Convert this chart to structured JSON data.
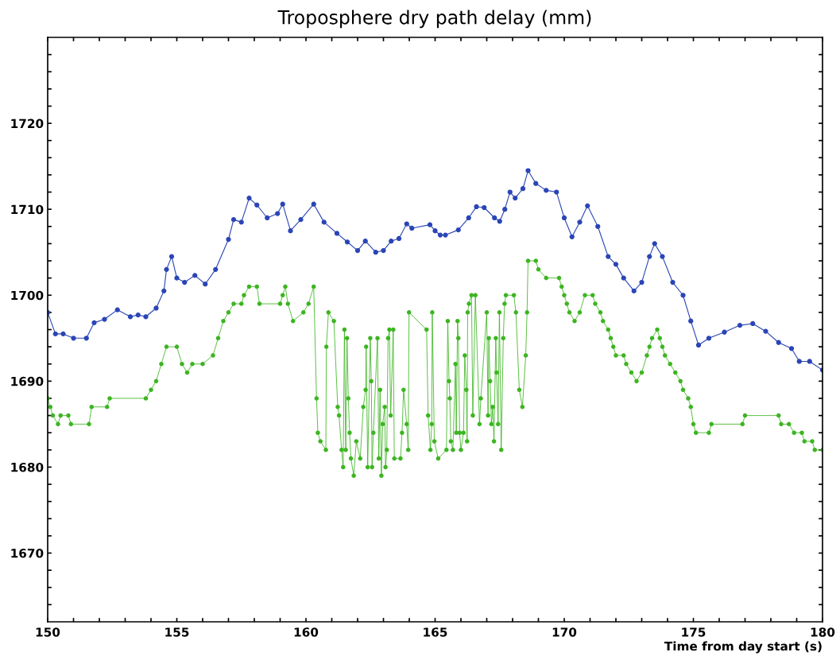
{
  "chart_data": {
    "type": "line",
    "title": "Troposphere dry path delay (mm)",
    "xlabel": "Time from day start (s)",
    "marker": "circle",
    "line_style": "solid",
    "grid": false,
    "legend": false,
    "xlim": [
      150,
      180
    ],
    "ylim": [
      1662,
      1730
    ],
    "xticks": [
      150,
      {
        "value": 151,
        "label": null
      },
      {
        "value": 152,
        "label": null
      },
      {
        "value": 153,
        "label": null
      },
      {
        "value": 154,
        "label": null
      },
      155,
      {
        "value": 156,
        "label": null
      },
      {
        "value": 157,
        "label": null
      },
      {
        "value": 158,
        "label": null
      },
      {
        "value": 159,
        "label": null
      },
      160,
      {
        "value": 161,
        "label": null
      },
      {
        "value": 162,
        "label": null
      },
      {
        "value": 163,
        "label": null
      },
      {
        "value": 164,
        "label": null
      },
      165,
      {
        "value": 166,
        "label": null
      },
      {
        "value": 167,
        "label": null
      },
      {
        "value": 168,
        "label": null
      },
      {
        "value": 169,
        "label": null
      },
      170,
      {
        "value": 171,
        "label": null
      },
      {
        "value": 172,
        "label": null
      },
      {
        "value": 173,
        "label": null
      },
      {
        "value": 174,
        "label": null
      },
      175,
      {
        "value": 176,
        "label": null
      },
      {
        "value": 177,
        "label": null
      },
      {
        "value": 178,
        "label": null
      },
      {
        "value": 179,
        "label": null
      },
      180
    ],
    "yticks": [
      {
        "value": 1664,
        "label": null
      },
      {
        "value": 1666,
        "label": null
      },
      {
        "value": 1668,
        "label": null
      },
      1670,
      {
        "value": 1672,
        "label": null
      },
      {
        "value": 1674,
        "label": null
      },
      {
        "value": 1676,
        "label": null
      },
      {
        "value": 1678,
        "label": null
      },
      1680,
      {
        "value": 1682,
        "label": null
      },
      {
        "value": 1684,
        "label": null
      },
      {
        "value": 1686,
        "label": null
      },
      {
        "value": 1688,
        "label": null
      },
      1690,
      {
        "value": 1692,
        "label": null
      },
      {
        "value": 1694,
        "label": null
      },
      {
        "value": 1696,
        "label": null
      },
      {
        "value": 1698,
        "label": null
      },
      1700,
      {
        "value": 1702,
        "label": null
      },
      {
        "value": 1704,
        "label": null
      },
      {
        "value": 1706,
        "label": null
      },
      {
        "value": 1708,
        "label": null
      },
      1710,
      {
        "value": 1712,
        "label": null
      },
      {
        "value": 1714,
        "label": null
      },
      {
        "value": 1716,
        "label": null
      },
      {
        "value": 1718,
        "label": null
      },
      1720,
      {
        "value": 1722,
        "label": null
      },
      {
        "value": 1724,
        "label": null
      },
      {
        "value": 1726,
        "label": null
      },
      {
        "value": 1728,
        "label": null
      }
    ],
    "series": [
      {
        "color": "#2a45b5",
        "x": [
          150.0,
          150.3,
          150.6,
          151.0,
          151.5,
          151.8,
          152.2,
          152.7,
          153.2,
          153.5,
          153.8,
          154.2,
          154.5,
          154.6,
          154.8,
          155.0,
          155.3,
          155.7,
          156.1,
          156.5,
          157.0,
          157.2,
          157.5,
          157.8,
          158.1,
          158.5,
          158.9,
          159.1,
          159.4,
          159.8,
          160.3,
          160.7,
          161.2,
          161.6,
          162.0,
          162.3,
          162.7,
          163.0,
          163.3,
          163.6,
          163.9,
          164.1,
          164.8,
          165.0,
          165.2,
          165.4,
          165.9,
          166.3,
          166.6,
          166.9,
          167.3,
          167.5,
          167.7,
          167.9,
          168.1,
          168.4,
          168.6,
          168.9,
          169.3,
          169.7,
          170.0,
          170.3,
          170.6,
          170.9,
          171.3,
          171.7,
          172.0,
          172.3,
          172.7,
          173.0,
          173.3,
          173.5,
          173.8,
          174.2,
          174.6,
          174.9,
          175.2,
          175.6,
          176.2,
          176.8,
          177.3,
          177.8,
          178.3,
          178.8,
          179.1,
          179.5,
          180.0
        ],
        "values": [
          1698,
          1695.5,
          1695.5,
          1695,
          1695,
          1696.8,
          1697.2,
          1698.3,
          1697.5,
          1697.7,
          1697.5,
          1698.5,
          1700.5,
          1703,
          1704.5,
          1702,
          1701.5,
          1702.3,
          1701.3,
          1703,
          1706.5,
          1708.8,
          1708.5,
          1711.3,
          1710.5,
          1709,
          1709.5,
          1710.6,
          1707.5,
          1708.8,
          1710.6,
          1708.5,
          1707.2,
          1706.2,
          1705.2,
          1706.3,
          1705,
          1705.2,
          1706.3,
          1706.6,
          1708.3,
          1707.8,
          1708.2,
          1707.5,
          1707,
          1707,
          1707.6,
          1709,
          1710.3,
          1710.2,
          1709,
          1708.6,
          1710,
          1712,
          1711.3,
          1712.4,
          1714.5,
          1713,
          1712.2,
          1712,
          1709,
          1706.8,
          1708.5,
          1710.4,
          1708,
          1704.5,
          1703.6,
          1702,
          1700.5,
          1701.5,
          1704.5,
          1706,
          1704.5,
          1701.5,
          1700,
          1697,
          1694.2,
          1695,
          1695.7,
          1696.5,
          1696.7,
          1695.8,
          1694.5,
          1693.8,
          1692.3,
          1692.3,
          1691.3
        ]
      },
      {
        "color": "#3cb521",
        "x": [
          150.0,
          150.1,
          150.2,
          150.4,
          150.5,
          150.8,
          150.9,
          151.6,
          151.7,
          152.3,
          152.4,
          153.8,
          154.0,
          154.2,
          154.4,
          154.6,
          155.0,
          155.2,
          155.4,
          155.6,
          156.0,
          156.4,
          156.6,
          156.8,
          157.0,
          157.2,
          157.5,
          157.6,
          157.8,
          158.1,
          158.2,
          159.0,
          159.1,
          159.2,
          159.3,
          159.5,
          159.9,
          160.1,
          160.3,
          160.41,
          160.46,
          160.56,
          160.77,
          160.79,
          160.87,
          161.08,
          161.23,
          161.28,
          161.38,
          161.44,
          161.49,
          161.54,
          161.59,
          161.64,
          161.69,
          161.74,
          161.85,
          161.95,
          162.1,
          162.22,
          162.31,
          162.33,
          162.39,
          162.49,
          162.53,
          162.56,
          162.61,
          162.77,
          162.82,
          162.87,
          162.92,
          162.97,
          163.05,
          163.08,
          163.13,
          163.18,
          163.23,
          163.28,
          163.38,
          163.42,
          163.66,
          163.72,
          163.78,
          163.9,
          163.96,
          163.99,
          164.67,
          164.73,
          164.82,
          164.87,
          164.89,
          164.97,
          165.12,
          165.44,
          165.49,
          165.54,
          165.57,
          165.61,
          165.69,
          165.79,
          165.82,
          165.87,
          165.9,
          165.95,
          166.0,
          166.1,
          166.15,
          166.21,
          166.24,
          166.26,
          166.31,
          166.41,
          166.46,
          166.56,
          166.72,
          166.77,
          167.0,
          167.05,
          167.08,
          167.13,
          167.18,
          167.23,
          167.28,
          167.35,
          167.38,
          167.44,
          167.49,
          167.56,
          167.64,
          167.69,
          167.74,
          168.05,
          168.13,
          168.26,
          168.38,
          168.51,
          168.56,
          168.6,
          168.9,
          169.0,
          169.3,
          169.8,
          169.9,
          170.0,
          170.1,
          170.2,
          170.4,
          170.6,
          170.8,
          171.1,
          171.2,
          171.4,
          171.5,
          171.7,
          171.8,
          171.9,
          172.0,
          172.3,
          172.4,
          172.6,
          172.8,
          173.0,
          173.2,
          173.3,
          173.4,
          173.6,
          173.7,
          173.8,
          173.9,
          174.1,
          174.3,
          174.5,
          174.6,
          174.8,
          174.9,
          175.0,
          175.1,
          175.6,
          175.7,
          176.9,
          177.0,
          178.3,
          178.4,
          178.7,
          178.9,
          179.2,
          179.3,
          179.6,
          179.7,
          180.0
        ],
        "values": [
          1688,
          1687,
          1686,
          1685,
          1686,
          1686,
          1685,
          1685,
          1687,
          1687,
          1688,
          1688,
          1689,
          1690,
          1692,
          1694,
          1694,
          1692,
          1691,
          1692,
          1692,
          1693,
          1695,
          1697,
          1698,
          1699,
          1699,
          1700,
          1701,
          1701,
          1699,
          1699,
          1700,
          1701,
          1699,
          1697,
          1698,
          1699,
          1701,
          1688,
          1684,
          1683,
          1682,
          1694,
          1698,
          1697,
          1687,
          1686,
          1682,
          1680,
          1696,
          1682,
          1695,
          1688,
          1684,
          1681,
          1679,
          1683,
          1681,
          1687,
          1689,
          1694,
          1680,
          1695,
          1690,
          1680,
          1684,
          1695,
          1681,
          1689,
          1679,
          1685,
          1687,
          1680,
          1682,
          1695,
          1696,
          1686,
          1696,
          1681,
          1681,
          1684,
          1689,
          1685,
          1682,
          1698,
          1696,
          1686,
          1682,
          1685,
          1698,
          1683,
          1681,
          1682,
          1697,
          1690,
          1688,
          1683,
          1682,
          1692,
          1684,
          1697,
          1695,
          1684,
          1682,
          1684,
          1693,
          1689,
          1683,
          1698,
          1699,
          1700,
          1686,
          1700,
          1685,
          1688,
          1698,
          1686,
          1695,
          1690,
          1685,
          1687,
          1683,
          1695,
          1691,
          1685,
          1698,
          1682,
          1695,
          1699,
          1700,
          1700,
          1698,
          1689,
          1687,
          1693,
          1698,
          1704,
          1704,
          1703,
          1702,
          1702,
          1701,
          1700,
          1699,
          1698,
          1697,
          1698,
          1700,
          1700,
          1699,
          1698,
          1697,
          1696,
          1695,
          1694,
          1693,
          1693,
          1692,
          1691,
          1690,
          1691,
          1693,
          1694,
          1695,
          1696,
          1695,
          1694,
          1693,
          1692,
          1691,
          1690,
          1689,
          1688,
          1687,
          1685,
          1684,
          1684,
          1685,
          1685,
          1686,
          1686,
          1685,
          1685,
          1684,
          1684,
          1683,
          1683,
          1682,
          1682
        ]
      }
    ]
  }
}
